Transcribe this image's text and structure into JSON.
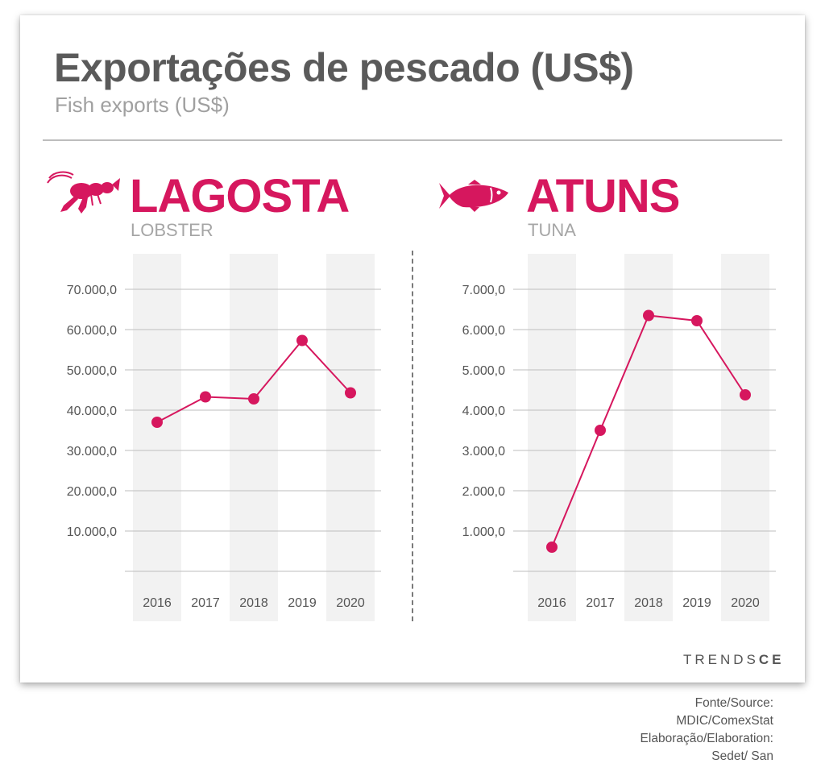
{
  "header": {
    "title": "Exportações de pescado (US$)",
    "subtitle": "Fish exports (US$)"
  },
  "colors": {
    "accent": "#d6175e",
    "band": "#f2f2f2",
    "grid": "#bdbdbd",
    "text": "#555555"
  },
  "charts": {
    "lobster": {
      "name": "LAGOSTA",
      "sub": "LOBSTER",
      "icon": "lobster-icon"
    },
    "tuna": {
      "name": "ATUNS",
      "sub": "TUNA",
      "icon": "fish-icon"
    }
  },
  "chart_data": [
    {
      "type": "line",
      "title": "LAGOSTA",
      "subtitle": "LOBSTER",
      "categories": [
        "2016",
        "2017",
        "2018",
        "2019",
        "2020"
      ],
      "values": [
        37000,
        43300,
        42800,
        57300,
        44300
      ],
      "yticks": [
        10000,
        20000,
        30000,
        40000,
        50000,
        60000,
        70000
      ],
      "ytick_labels": [
        "10.000,0",
        "20.000,0",
        "30.000,0",
        "40.000,0",
        "50.000,0",
        "60.000,0",
        "70.000,0"
      ],
      "ylim": [
        0,
        70000
      ],
      "grid": true
    },
    {
      "type": "line",
      "title": "ATUNS",
      "subtitle": "TUNA",
      "categories": [
        "2016",
        "2017",
        "2018",
        "2019",
        "2020"
      ],
      "values": [
        600,
        3500,
        6350,
        6220,
        4380
      ],
      "yticks": [
        1000,
        2000,
        3000,
        4000,
        5000,
        6000,
        7000
      ],
      "ytick_labels": [
        "1.000,0",
        "2.000,0",
        "3.000,0",
        "4.000,0",
        "5.000,0",
        "6.000,0",
        "7.000,0"
      ],
      "ylim": [
        0,
        7000
      ],
      "grid": true
    }
  ],
  "brand": {
    "light": "TRENDS",
    "bold": "CE"
  },
  "source": {
    "line1": "Fonte/Source:",
    "line2": "MDIC/ComexStat",
    "line3": "Elaboração/Elaboration:",
    "line4": "Sedet/ San"
  }
}
